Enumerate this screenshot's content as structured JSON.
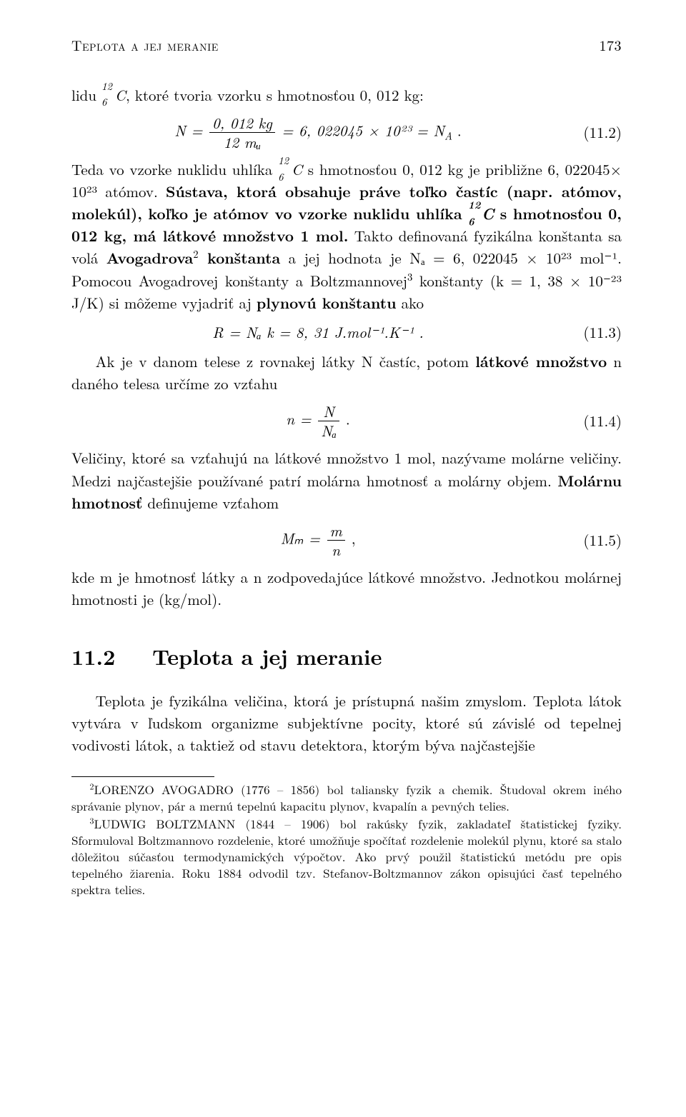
{
  "header": {
    "running_title": "Teplota a jej meranie",
    "page_number": "173"
  },
  "p_intro": "lidu ",
  "nuclide_c12": {
    "mass": "12",
    "atomic": "6",
    "sym": "C"
  },
  "p_intro2": ", ktoré tvoria vzorku s hmotnosťou 0, 012 kg:",
  "eq1": {
    "lhs": "N =",
    "frac_top": "0, 012 kg",
    "frac_bot": "12 mᵤ",
    "rhs": " = 6, 022045 × 10²³ = N",
    "sub": "A",
    "tail": " .",
    "num": "(11.2)"
  },
  "p2a": "Teda vo vzorke nuklidu uhlíka ",
  "p2b": " s hmotnosťou 0, 012 kg je približne 6, 022045× 10²³ atómov. ",
  "p2c": "Sústava, ktorá obsahuje práve toľko častíc (napr. atómov, molekúl), koľko je atómov vo vzorke nuklidu uhlíka ",
  "p2d": " s hmotnosťou 0, 012 kg, má látkové množstvo 1 mol.",
  "p2e": " Takto definovaná fyzikálna konštanta sa volá ",
  "p2f": "Avogadrova",
  "p2g": " konštanta",
  "p2h": " a jej hodnota je Nₐ = 6, 022045 × 10²³ mol⁻¹.  Pomocou Avogadrovej konštanty a Boltzmannovej",
  "p2i": " konštanty (k = 1, 38 × 10⁻²³  J/K) si môžeme vyjadriť aj ",
  "p2j": "plynovú konštantu",
  "p2k": " ako",
  "eq2": {
    "body": "R = Nₐ k = 8, 31 J.mol⁻¹.K⁻¹ .",
    "num": "(11.3)"
  },
  "p3a": "Ak je v danom telese z rovnakej látky N častíc, potom ",
  "p3b": "látkové množstvo",
  "p3c": " n daného telesa určíme zo vzťahu",
  "eq3": {
    "lhs": "n =",
    "frac_top": "N",
    "frac_bot": "Nₐ",
    "tail": " .",
    "num": "(11.4)"
  },
  "p4a": "Veličiny, ktoré sa vzťahujú na látkové množstvo 1 mol, nazývame molárne veličiny. Medzi najčastejšie používané patrí molárna hmotnosť a molárny objem. ",
  "p4b": "Molárnu hmotnosť",
  "p4c": " definujeme vzťahom",
  "eq4": {
    "lhs": "Mₘ =",
    "frac_top": "m",
    "frac_bot": "n",
    "tail": " ,",
    "num": "(11.5)"
  },
  "p5": "kde m je hmotnosť látky a n zodpovedajúce látkové množstvo.  Jednotkou molárnej hmotnosti je (kg/mol).",
  "section": {
    "number": "11.2",
    "title": "Teplota a jej meranie"
  },
  "p6": "Teplota je fyzikálna veličina, ktorá je prístupná našim zmyslom. Teplota látok vytvára v ľudskom organizme subjektívne pocity, ktoré sú závislé od tepelnej vodivosti látok, a taktiež od stavu detektora, ktorým býva najčastejšie",
  "footnotes": {
    "fn2_mark": "2",
    "fn2": "LORENZO AVOGADRO (1776 – 1856) bol taliansky fyzik a chemik. Študoval okrem iného správanie plynov, pár a mernú tepelnú kapacitu plynov, kvapalín a pevných telies.",
    "fn3_mark": "3",
    "fn3": "LUDWIG BOLTZMANN (1844 – 1906) bol rakúsky fyzik, zakladateľ štatistickej fyziky. Sformuloval Boltzmannovo rozdelenie, ktoré umožňuje spočítať rozdelenie molekúl plynu, ktoré sa stalo dôležitou súčasťou termodynamických výpočtov. Ako prvý použil štatistickú metódu pre opis tepelného žiarenia. Roku 1884 odvodil tzv. Stefanov-Boltzmannov zákon opisujúci časť tepelného spektra telies."
  }
}
